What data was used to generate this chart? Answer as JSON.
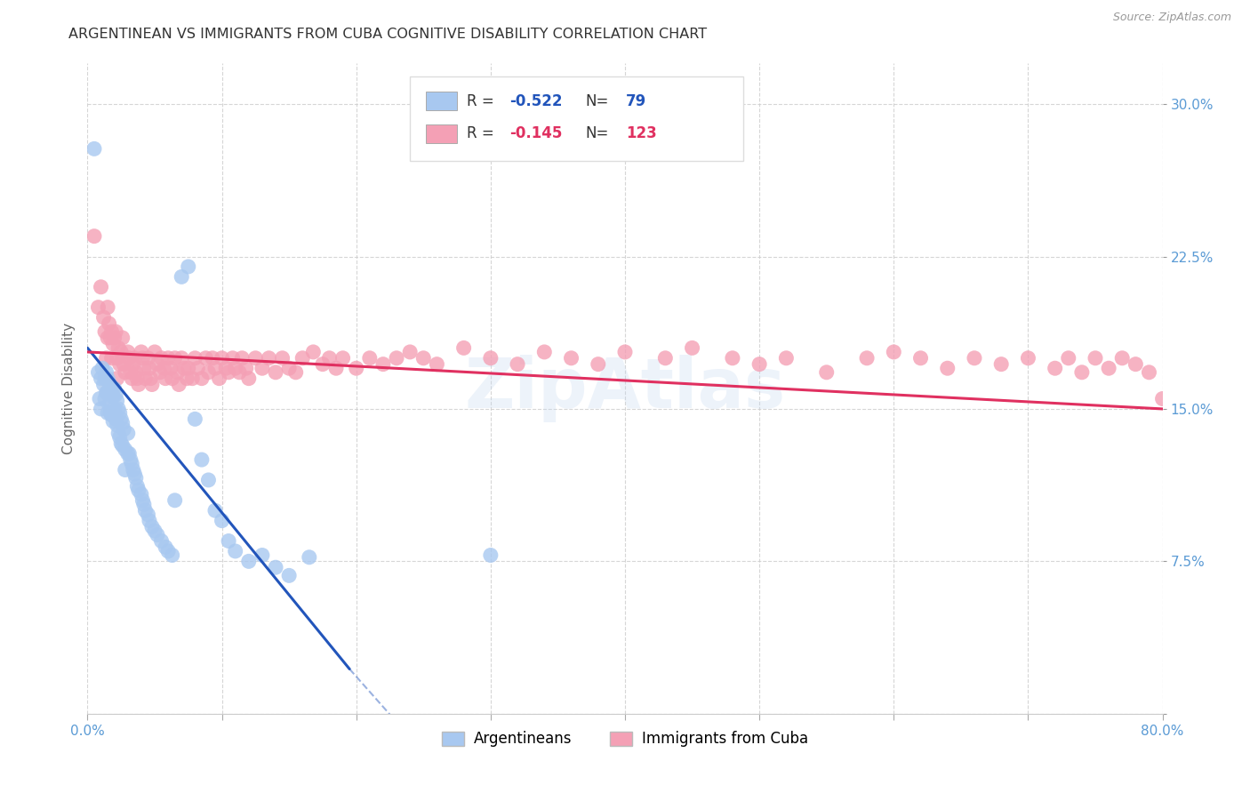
{
  "title": "ARGENTINEAN VS IMMIGRANTS FROM CUBA COGNITIVE DISABILITY CORRELATION CHART",
  "source": "Source: ZipAtlas.com",
  "ylabel": "Cognitive Disability",
  "watermark": "ZipAtlas",
  "legend_blue_R": "-0.522",
  "legend_blue_N": "79",
  "legend_pink_R": "-0.145",
  "legend_pink_N": "123",
  "legend_label_blue": "Argentineans",
  "legend_label_pink": "Immigrants from Cuba",
  "xlim": [
    0.0,
    0.8
  ],
  "ylim": [
    0.0,
    0.32
  ],
  "xticks": [
    0.0,
    0.1,
    0.2,
    0.3,
    0.4,
    0.5,
    0.6,
    0.7,
    0.8
  ],
  "xtick_labels": [
    "0.0%",
    "",
    "",
    "",
    "",
    "",
    "",
    "",
    "80.0%"
  ],
  "yticks": [
    0.0,
    0.075,
    0.15,
    0.225,
    0.3
  ],
  "ytick_labels": [
    "",
    "7.5%",
    "15.0%",
    "22.5%",
    "30.0%"
  ],
  "background_color": "#ffffff",
  "grid_color": "#cccccc",
  "title_color": "#333333",
  "axis_color": "#5b9bd5",
  "blue_scatter_color": "#a8c8f0",
  "pink_scatter_color": "#f4a0b5",
  "blue_line_color": "#2255bb",
  "pink_line_color": "#e03060",
  "blue_line_solid": [
    [
      0.0,
      0.18
    ],
    [
      0.195,
      0.022
    ]
  ],
  "blue_line_dashed": [
    [
      0.195,
      0.022
    ],
    [
      0.305,
      -0.06
    ]
  ],
  "pink_line": [
    [
      0.0,
      0.178
    ],
    [
      0.8,
      0.15
    ]
  ],
  "blue_points_x": [
    0.005,
    0.008,
    0.009,
    0.01,
    0.01,
    0.011,
    0.012,
    0.013,
    0.013,
    0.014,
    0.014,
    0.015,
    0.015,
    0.015,
    0.016,
    0.016,
    0.017,
    0.017,
    0.018,
    0.018,
    0.019,
    0.019,
    0.02,
    0.02,
    0.021,
    0.021,
    0.022,
    0.022,
    0.023,
    0.023,
    0.024,
    0.024,
    0.025,
    0.025,
    0.026,
    0.026,
    0.027,
    0.028,
    0.028,
    0.03,
    0.03,
    0.031,
    0.032,
    0.033,
    0.034,
    0.035,
    0.036,
    0.037,
    0.038,
    0.04,
    0.041,
    0.042,
    0.043,
    0.045,
    0.046,
    0.048,
    0.05,
    0.052,
    0.055,
    0.058,
    0.06,
    0.063,
    0.065,
    0.07,
    0.075,
    0.08,
    0.085,
    0.09,
    0.095,
    0.1,
    0.105,
    0.11,
    0.12,
    0.13,
    0.14,
    0.15,
    0.165,
    0.3
  ],
  "blue_points_y": [
    0.278,
    0.168,
    0.155,
    0.165,
    0.15,
    0.17,
    0.162,
    0.165,
    0.155,
    0.168,
    0.158,
    0.165,
    0.158,
    0.148,
    0.163,
    0.152,
    0.16,
    0.148,
    0.158,
    0.147,
    0.156,
    0.144,
    0.16,
    0.15,
    0.157,
    0.145,
    0.154,
    0.142,
    0.15,
    0.138,
    0.148,
    0.136,
    0.145,
    0.133,
    0.143,
    0.132,
    0.14,
    0.13,
    0.12,
    0.138,
    0.128,
    0.128,
    0.125,
    0.123,
    0.12,
    0.118,
    0.116,
    0.112,
    0.11,
    0.108,
    0.105,
    0.103,
    0.1,
    0.098,
    0.095,
    0.092,
    0.09,
    0.088,
    0.085,
    0.082,
    0.08,
    0.078,
    0.105,
    0.215,
    0.22,
    0.145,
    0.125,
    0.115,
    0.1,
    0.095,
    0.085,
    0.08,
    0.075,
    0.078,
    0.072,
    0.068,
    0.077,
    0.078
  ],
  "pink_points_x": [
    0.005,
    0.008,
    0.01,
    0.012,
    0.013,
    0.014,
    0.015,
    0.015,
    0.016,
    0.017,
    0.018,
    0.018,
    0.019,
    0.02,
    0.021,
    0.022,
    0.022,
    0.023,
    0.024,
    0.025,
    0.026,
    0.027,
    0.028,
    0.03,
    0.031,
    0.032,
    0.033,
    0.034,
    0.035,
    0.036,
    0.037,
    0.038,
    0.04,
    0.041,
    0.042,
    0.043,
    0.045,
    0.046,
    0.047,
    0.048,
    0.05,
    0.052,
    0.054,
    0.055,
    0.057,
    0.058,
    0.06,
    0.062,
    0.063,
    0.065,
    0.067,
    0.068,
    0.07,
    0.072,
    0.074,
    0.075,
    0.078,
    0.08,
    0.082,
    0.085,
    0.088,
    0.09,
    0.093,
    0.095,
    0.098,
    0.1,
    0.103,
    0.105,
    0.108,
    0.11,
    0.113,
    0.115,
    0.118,
    0.12,
    0.125,
    0.13,
    0.135,
    0.14,
    0.145,
    0.15,
    0.155,
    0.16,
    0.168,
    0.175,
    0.18,
    0.185,
    0.19,
    0.2,
    0.21,
    0.22,
    0.23,
    0.24,
    0.25,
    0.26,
    0.28,
    0.3,
    0.32,
    0.34,
    0.36,
    0.38,
    0.4,
    0.43,
    0.45,
    0.48,
    0.5,
    0.52,
    0.55,
    0.58,
    0.6,
    0.62,
    0.64,
    0.66,
    0.68,
    0.7,
    0.72,
    0.73,
    0.74,
    0.75,
    0.76,
    0.77,
    0.78,
    0.79,
    0.8
  ],
  "pink_points_y": [
    0.235,
    0.2,
    0.21,
    0.195,
    0.188,
    0.175,
    0.2,
    0.185,
    0.192,
    0.185,
    0.188,
    0.175,
    0.182,
    0.185,
    0.188,
    0.175,
    0.165,
    0.18,
    0.172,
    0.178,
    0.185,
    0.172,
    0.168,
    0.178,
    0.175,
    0.168,
    0.165,
    0.172,
    0.175,
    0.168,
    0.165,
    0.162,
    0.178,
    0.175,
    0.17,
    0.165,
    0.175,
    0.17,
    0.165,
    0.162,
    0.178,
    0.172,
    0.168,
    0.175,
    0.17,
    0.165,
    0.175,
    0.17,
    0.165,
    0.175,
    0.168,
    0.162,
    0.175,
    0.17,
    0.165,
    0.17,
    0.165,
    0.175,
    0.17,
    0.165,
    0.175,
    0.168,
    0.175,
    0.17,
    0.165,
    0.175,
    0.17,
    0.168,
    0.175,
    0.17,
    0.168,
    0.175,
    0.17,
    0.165,
    0.175,
    0.17,
    0.175,
    0.168,
    0.175,
    0.17,
    0.168,
    0.175,
    0.178,
    0.172,
    0.175,
    0.17,
    0.175,
    0.17,
    0.175,
    0.172,
    0.175,
    0.178,
    0.175,
    0.172,
    0.18,
    0.175,
    0.172,
    0.178,
    0.175,
    0.172,
    0.178,
    0.175,
    0.18,
    0.175,
    0.172,
    0.175,
    0.168,
    0.175,
    0.178,
    0.175,
    0.17,
    0.175,
    0.172,
    0.175,
    0.17,
    0.175,
    0.168,
    0.175,
    0.17,
    0.175,
    0.172,
    0.168,
    0.155
  ]
}
